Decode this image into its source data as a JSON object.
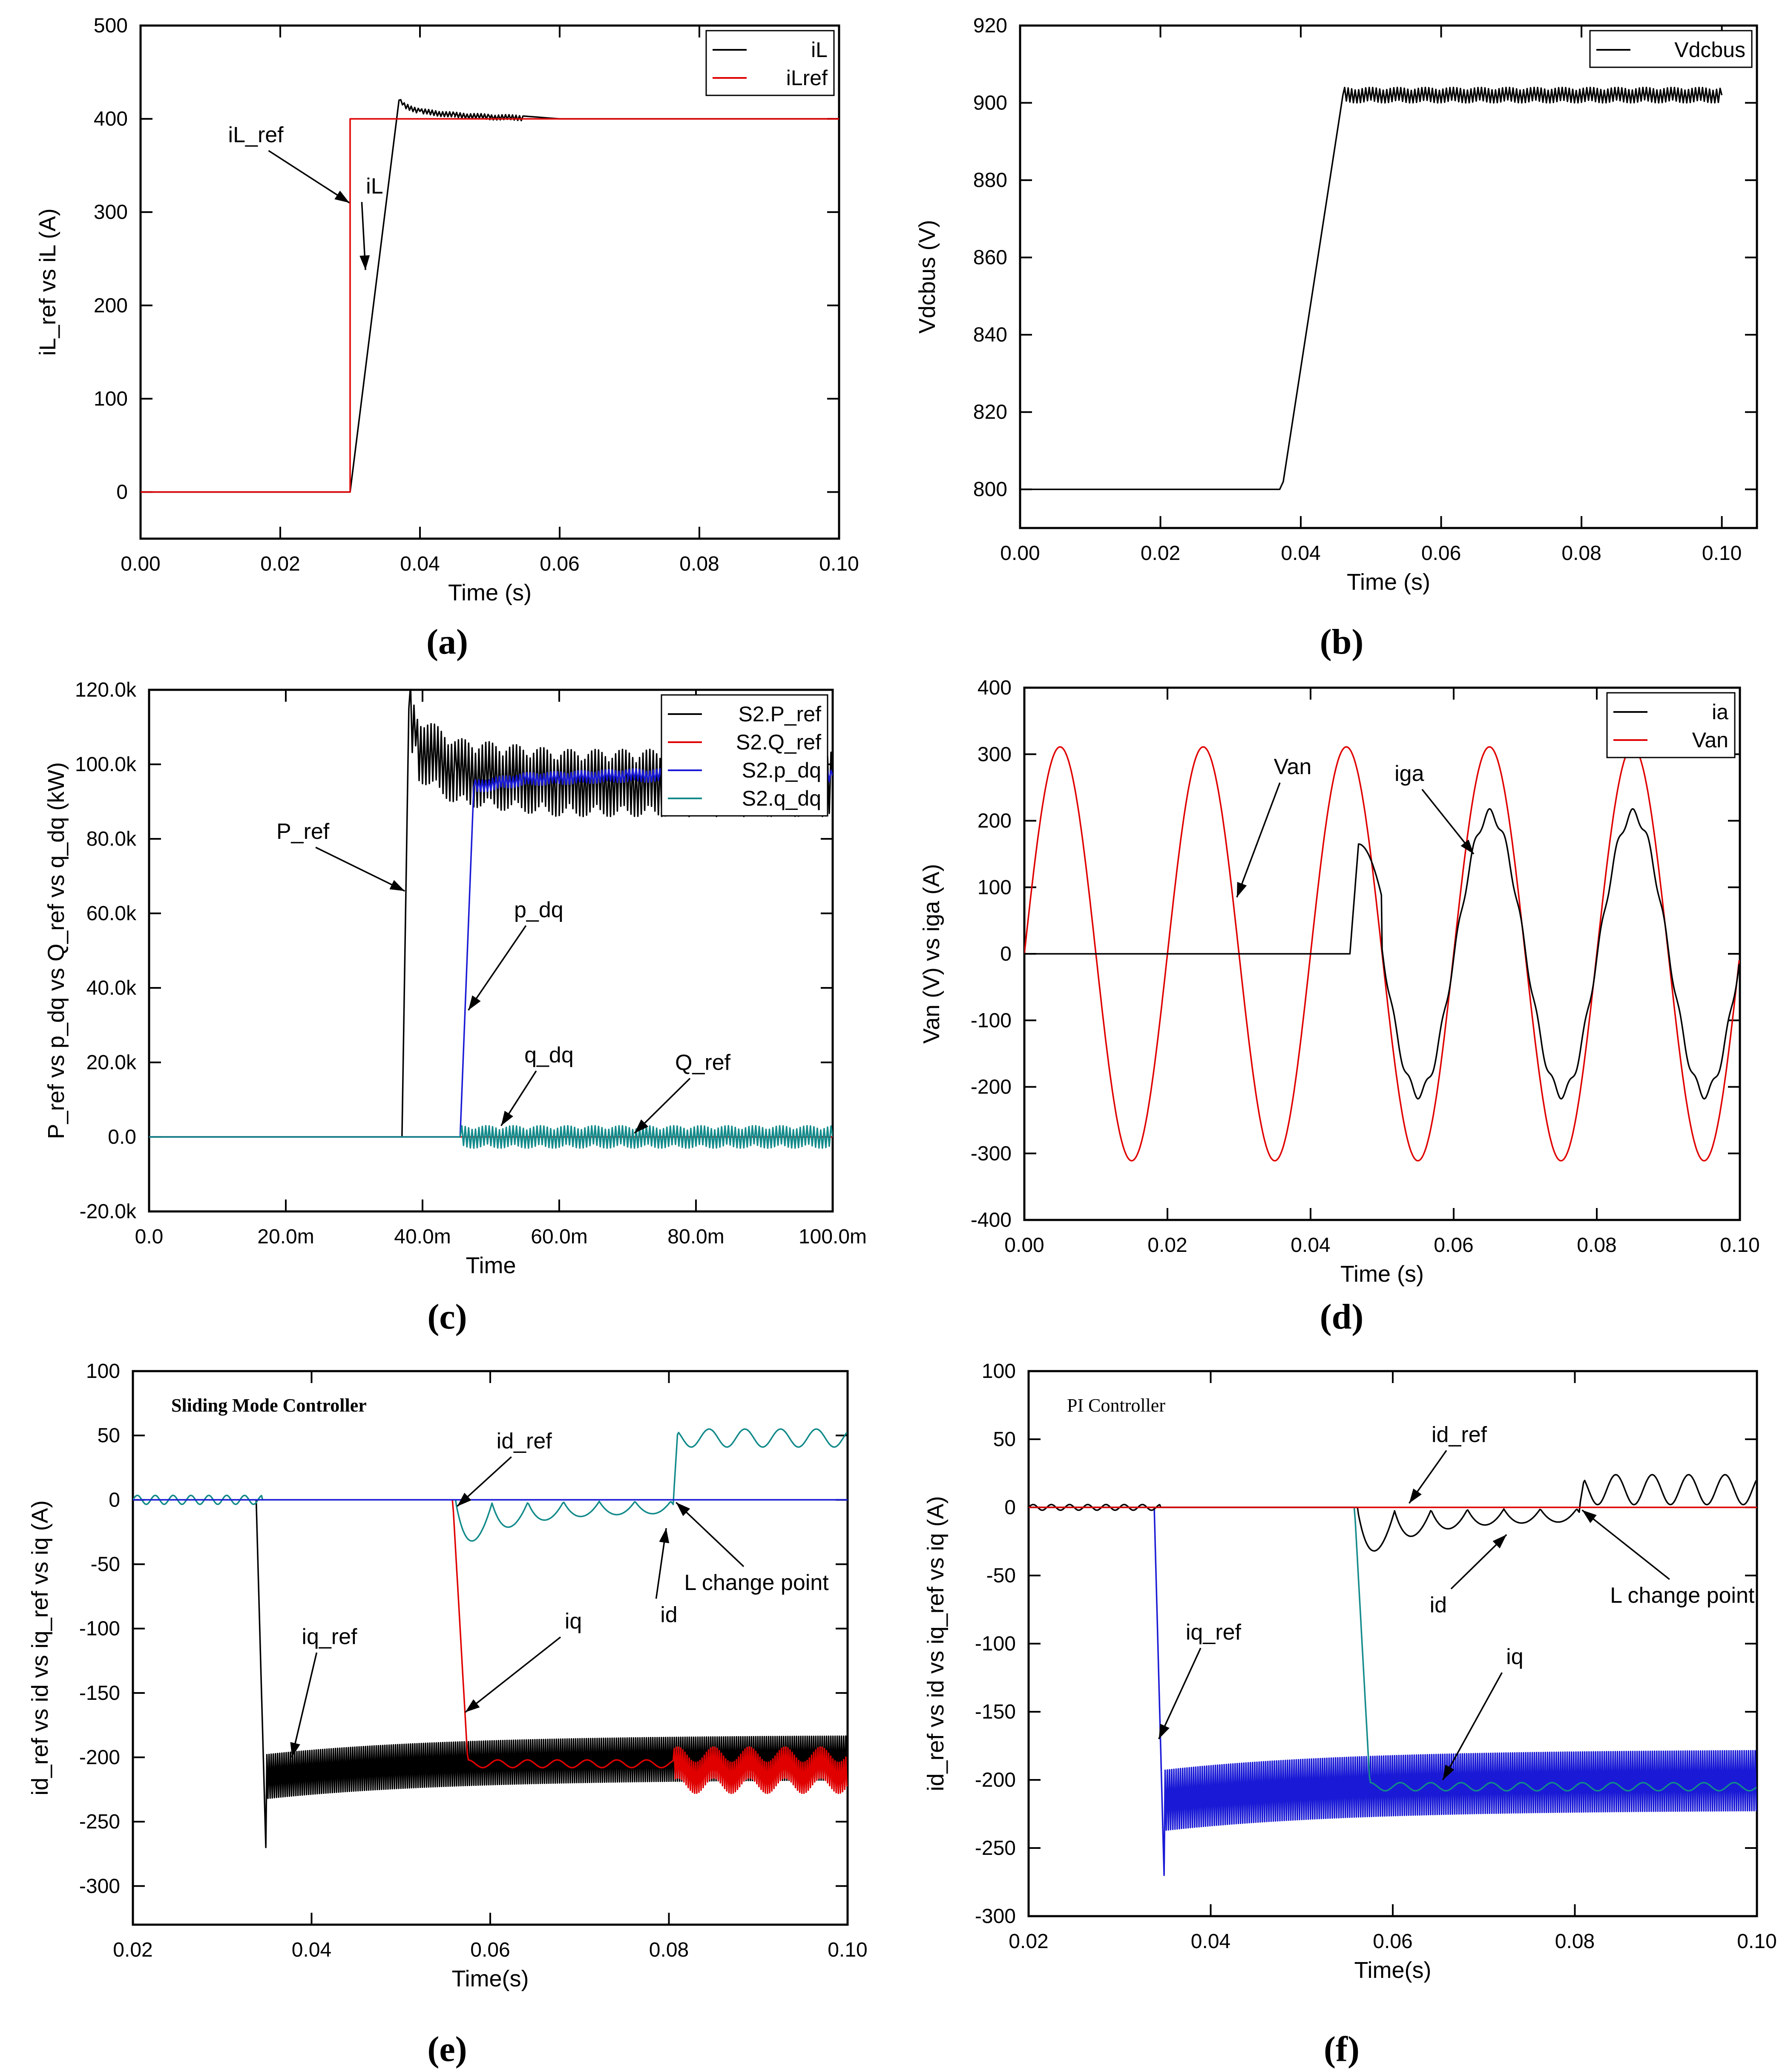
{
  "chart_data": [
    {
      "id": "a",
      "type": "line",
      "caption": "(a)",
      "title": "",
      "xlabel": "Time (s)",
      "ylabel": "iL_ref vs iL (A)",
      "xlim": [
        0,
        0.1
      ],
      "ylim": [
        -50,
        500
      ],
      "xticks": [
        0,
        0.02,
        0.04,
        0.06,
        0.08,
        0.1
      ],
      "xtick_labels": [
        "0.00",
        "0.02",
        "0.04",
        "0.06",
        "0.08",
        "0.10"
      ],
      "yticks": [
        0,
        100,
        200,
        300,
        400,
        500
      ],
      "ytick_labels": [
        "0",
        "100",
        "200",
        "300",
        "400",
        "500"
      ],
      "legend": {
        "position": "top-right",
        "entries": [
          {
            "name": "iL",
            "color": "#000000"
          },
          {
            "name": "iLref",
            "color": "#e00000"
          }
        ]
      },
      "series": [
        {
          "name": "iL",
          "color": "#000000",
          "x": [
            0,
            0.03,
            0.0365,
            0.037,
            0.0375,
            0.04,
            0.045,
            0.05,
            0.06,
            0.07,
            0.1
          ],
          "y": [
            0,
            0,
            390,
            420,
            415,
            408,
            404,
            402,
            400,
            400,
            400
          ],
          "ripple": [
            0.037,
            0.055,
            3
          ]
        },
        {
          "name": "iLref",
          "color": "#e00000",
          "x": [
            0,
            0.03,
            0.03,
            0.1
          ],
          "y": [
            0,
            0,
            400,
            400
          ]
        }
      ],
      "annotations": [
        {
          "text": "iL_ref",
          "tx": 0.0165,
          "ty": 375,
          "ax": 0.0299,
          "ay": 310
        },
        {
          "text": "iL",
          "tx": 0.0335,
          "ty": 320,
          "ax": 0.0322,
          "ay": 238
        }
      ]
    },
    {
      "id": "b",
      "type": "line",
      "caption": "(b)",
      "title": "",
      "xlabel": "Time (s)",
      "ylabel": "Vdcbus (V)",
      "xlim": [
        0,
        0.105
      ],
      "ylim": [
        790,
        920
      ],
      "xticks": [
        0,
        0.02,
        0.04,
        0.06,
        0.08,
        0.1
      ],
      "xtick_labels": [
        "0.00",
        "0.02",
        "0.04",
        "0.06",
        "0.08",
        "0.10"
      ],
      "yticks": [
        800,
        820,
        840,
        860,
        880,
        900,
        920
      ],
      "ytick_labels": [
        "800",
        "820",
        "840",
        "860",
        "880",
        "900",
        "920"
      ],
      "legend": {
        "position": "top-right",
        "entries": [
          {
            "name": "Vdcbus",
            "color": "#000000"
          }
        ]
      },
      "series": [
        {
          "name": "Vdcbus",
          "color": "#000000",
          "x": [
            0,
            0.037,
            0.0375,
            0.046,
            0.1
          ],
          "y": [
            800,
            800,
            802,
            902,
            902
          ],
          "ripple": [
            0.046,
            0.1,
            2
          ]
        }
      ],
      "annotations": []
    },
    {
      "id": "c",
      "type": "line",
      "caption": "(c)",
      "title": "",
      "xlabel": "Time",
      "ylabel": "P_ref vs p_dq vs Q_ref vs q_dq (kW)",
      "xlim": [
        0,
        0.1
      ],
      "ylim": [
        -20000,
        120000
      ],
      "xticks": [
        0,
        0.02,
        0.04,
        0.06,
        0.08,
        0.1
      ],
      "xtick_labels": [
        "0.0",
        "20.0m",
        "40.0m",
        "60.0m",
        "80.0m",
        "100.0m"
      ],
      "yticks": [
        -20000,
        0,
        20000,
        40000,
        60000,
        80000,
        100000,
        120000
      ],
      "ytick_labels": [
        "-20.0k",
        "0.0",
        "20.0k",
        "40.0k",
        "60.0k",
        "80.0k",
        "100.0k",
        "120.0k"
      ],
      "legend": {
        "position": "top-right",
        "entries": [
          {
            "name": "S2.P_ref",
            "color": "#000000"
          },
          {
            "name": "S2.Q_ref",
            "color": "#e00000"
          },
          {
            "name": "S2.p_dq",
            "color": "#1a1ad6"
          },
          {
            "name": "S2.q_dq",
            "color": "#138a8a"
          }
        ]
      },
      "series": [
        {
          "name": "S2.P_ref",
          "color": "#000000",
          "x": [
            0,
            0.037,
            0.038,
            0.039,
            0.045,
            0.06,
            0.1
          ],
          "y": [
            0,
            0,
            115000,
            105000,
            98000,
            95000,
            95000
          ],
          "ripple": [
            0.038,
            0.1,
            9000
          ]
        },
        {
          "name": "S2.Q_ref",
          "color": "#e00000",
          "x": [
            0,
            0.1
          ],
          "y": [
            0,
            0
          ]
        },
        {
          "name": "S2.p_dq",
          "color": "#1a1ad6",
          "x": [
            0,
            0.0455,
            0.0475,
            0.055,
            0.07,
            0.1
          ],
          "y": [
            0,
            0,
            94000,
            96000,
            97000,
            97000
          ],
          "ripple": [
            0.0475,
            0.1,
            1800
          ]
        },
        {
          "name": "S2.q_dq",
          "color": "#138a8a",
          "x": [
            0,
            0.0455,
            0.1
          ],
          "y": [
            0,
            0,
            0
          ],
          "ripple": [
            0.0455,
            0.1,
            3000
          ]
        }
      ],
      "annotations": [
        {
          "text": "P_ref",
          "tx": 0.0225,
          "ty": 80000,
          "ax": 0.0374,
          "ay": 66000
        },
        {
          "text": "p_dq",
          "tx": 0.057,
          "ty": 59000,
          "ax": 0.0467,
          "ay": 34000
        },
        {
          "text": "q_dq",
          "tx": 0.0585,
          "ty": 20000,
          "ax": 0.0515,
          "ay": 3000
        },
        {
          "text": "Q_ref",
          "tx": 0.081,
          "ty": 18000,
          "ax": 0.071,
          "ay": 1000
        }
      ]
    },
    {
      "id": "d",
      "type": "line",
      "caption": "(d)",
      "title": "",
      "xlabel": "Time (s)",
      "ylabel": "Van (V) vs iga (A)",
      "xlim": [
        0,
        0.1
      ],
      "ylim": [
        -400,
        400
      ],
      "xticks": [
        0,
        0.02,
        0.04,
        0.06,
        0.08,
        0.1
      ],
      "xtick_labels": [
        "0.00",
        "0.02",
        "0.04",
        "0.06",
        "0.08",
        "0.10"
      ],
      "yticks": [
        -400,
        -300,
        -200,
        -100,
        0,
        100,
        200,
        300,
        400
      ],
      "ytick_labels": [
        "-400",
        "-300",
        "-200",
        "-100",
        "0",
        "100",
        "200",
        "300",
        "400"
      ],
      "legend": {
        "position": "top-right",
        "entries": [
          {
            "name": "ia",
            "color": "#000000"
          },
          {
            "name": "Van",
            "color": "#e00000"
          }
        ]
      },
      "series": [
        {
          "name": "Van",
          "color": "#e00000",
          "amplitude": 311,
          "frequency_hz": 50
        },
        {
          "name": "ia",
          "color": "#000000",
          "amplitude": 210,
          "frequency_hz": 50,
          "start": 0.0455,
          "first_peak": 165
        }
      ],
      "annotations": [
        {
          "text": "Van",
          "tx": 0.0375,
          "ty": 270,
          "ax": 0.0297,
          "ay": 85
        },
        {
          "text": "iga",
          "tx": 0.0538,
          "ty": 260,
          "ax": 0.0628,
          "ay": 150
        }
      ]
    },
    {
      "id": "e",
      "type": "line",
      "caption": "(e)",
      "title": "Sliding Mode Controller",
      "xlabel": "Time(s)",
      "ylabel": "id_ref vs id vs iq_ref vs iq (A)",
      "xlim": [
        0.02,
        0.1
      ],
      "ylim": [
        -330,
        100
      ],
      "xticks": [
        0.02,
        0.04,
        0.06,
        0.08,
        0.1
      ],
      "xtick_labels": [
        "0.02",
        "0.04",
        "0.06",
        "0.08",
        "0.10"
      ],
      "yticks": [
        -300,
        -250,
        -200,
        -150,
        -100,
        -50,
        0,
        50,
        100
      ],
      "ytick_labels": [
        "-300",
        "-250",
        "-200",
        "-150",
        "-100",
        "-50",
        "0",
        "50",
        "100"
      ],
      "legend": null,
      "series": [
        {
          "name": "iq_ref",
          "color": "#000000"
        },
        {
          "name": "iq",
          "color": "#e00000"
        },
        {
          "name": "id",
          "color": "#138a8a"
        },
        {
          "name": "id_ref",
          "color": "#1a1ad6"
        }
      ],
      "annotations": [
        {
          "text": "id_ref",
          "tx": 0.0638,
          "ty": 40,
          "ax": 0.0563,
          "ay": -5
        },
        {
          "text": "id",
          "tx": 0.08,
          "ty": -95,
          "ax": 0.0797,
          "ay": -22
        },
        {
          "text": "L change point",
          "tx": 0.0898,
          "ty": -70,
          "ax": 0.0808,
          "ay": -2
        },
        {
          "text": "iq_ref",
          "tx": 0.042,
          "ty": -112,
          "ax": 0.0378,
          "ay": -200
        },
        {
          "text": "iq",
          "tx": 0.0693,
          "ty": -100,
          "ax": 0.0572,
          "ay": -165
        }
      ]
    },
    {
      "id": "f",
      "type": "line",
      "caption": "(f)",
      "title": "PI Controller",
      "xlabel": "Time(s)",
      "ylabel": "id_ref vs id vs iq_ref vs iq (A)",
      "xlim": [
        0.02,
        0.1
      ],
      "ylim": [
        -300,
        100
      ],
      "xticks": [
        0.02,
        0.04,
        0.06,
        0.08,
        0.1
      ],
      "xtick_labels": [
        "0.02",
        "0.04",
        "0.06",
        "0.08",
        "0.10"
      ],
      "yticks": [
        -300,
        -250,
        -200,
        -150,
        -100,
        -50,
        0,
        50,
        100
      ],
      "ytick_labels": [
        "-300",
        "-250",
        "-200",
        "-150",
        "-100",
        "-50",
        "0",
        "50",
        "100"
      ],
      "legend": null,
      "series": [
        {
          "name": "iq_ref",
          "color": "#1a1ad6"
        },
        {
          "name": "iq",
          "color": "#138a8a"
        },
        {
          "name": "id",
          "color": "#000000"
        },
        {
          "name": "id_ref",
          "color": "#e00000"
        }
      ],
      "annotations": [
        {
          "text": "id_ref",
          "tx": 0.0673,
          "ty": 48,
          "ax": 0.0618,
          "ay": 3
        },
        {
          "text": "id",
          "tx": 0.065,
          "ty": -77,
          "ax": 0.0725,
          "ay": -20
        },
        {
          "text": "L change point",
          "tx": 0.0918,
          "ty": -70,
          "ax": 0.0808,
          "ay": -2
        },
        {
          "text": "iq_ref",
          "tx": 0.0403,
          "ty": -97,
          "ax": 0.0343,
          "ay": -170
        },
        {
          "text": "iq",
          "tx": 0.0734,
          "ty": -115,
          "ax": 0.0655,
          "ay": -200
        }
      ]
    }
  ]
}
